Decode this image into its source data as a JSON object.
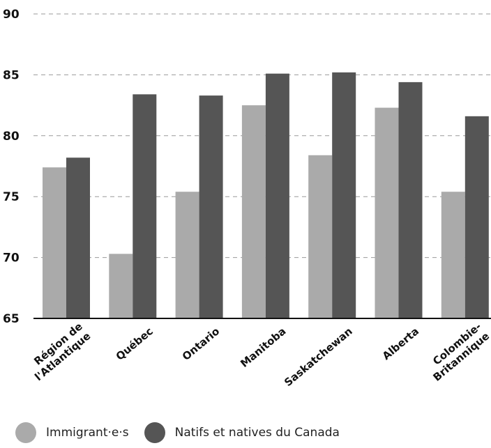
{
  "chart_data": {
    "type": "bar",
    "title": "",
    "xlabel": "",
    "ylabel": "",
    "ylim": [
      65,
      90
    ],
    "yticks": [
      65,
      70,
      75,
      80,
      85,
      90
    ],
    "grid": "horizontal dashed",
    "legend_position": "bottom-left",
    "categories": [
      [
        "Région de",
        "l'Atlantique"
      ],
      [
        "Québec"
      ],
      [
        "Ontario"
      ],
      [
        "Manitoba"
      ],
      [
        "Saskatchewan"
      ],
      [
        "Alberta"
      ],
      [
        "Colombie-",
        "Britannique"
      ]
    ],
    "series": [
      {
        "name": "Immigrant·e·s",
        "color": "#aaaaaa",
        "values": [
          77.4,
          70.3,
          75.4,
          82.5,
          78.4,
          82.3,
          75.4
        ]
      },
      {
        "name": "Natifs et natives du Canada",
        "color": "#555555",
        "values": [
          78.2,
          83.4,
          83.3,
          85.1,
          85.2,
          84.4,
          81.6
        ]
      }
    ]
  }
}
